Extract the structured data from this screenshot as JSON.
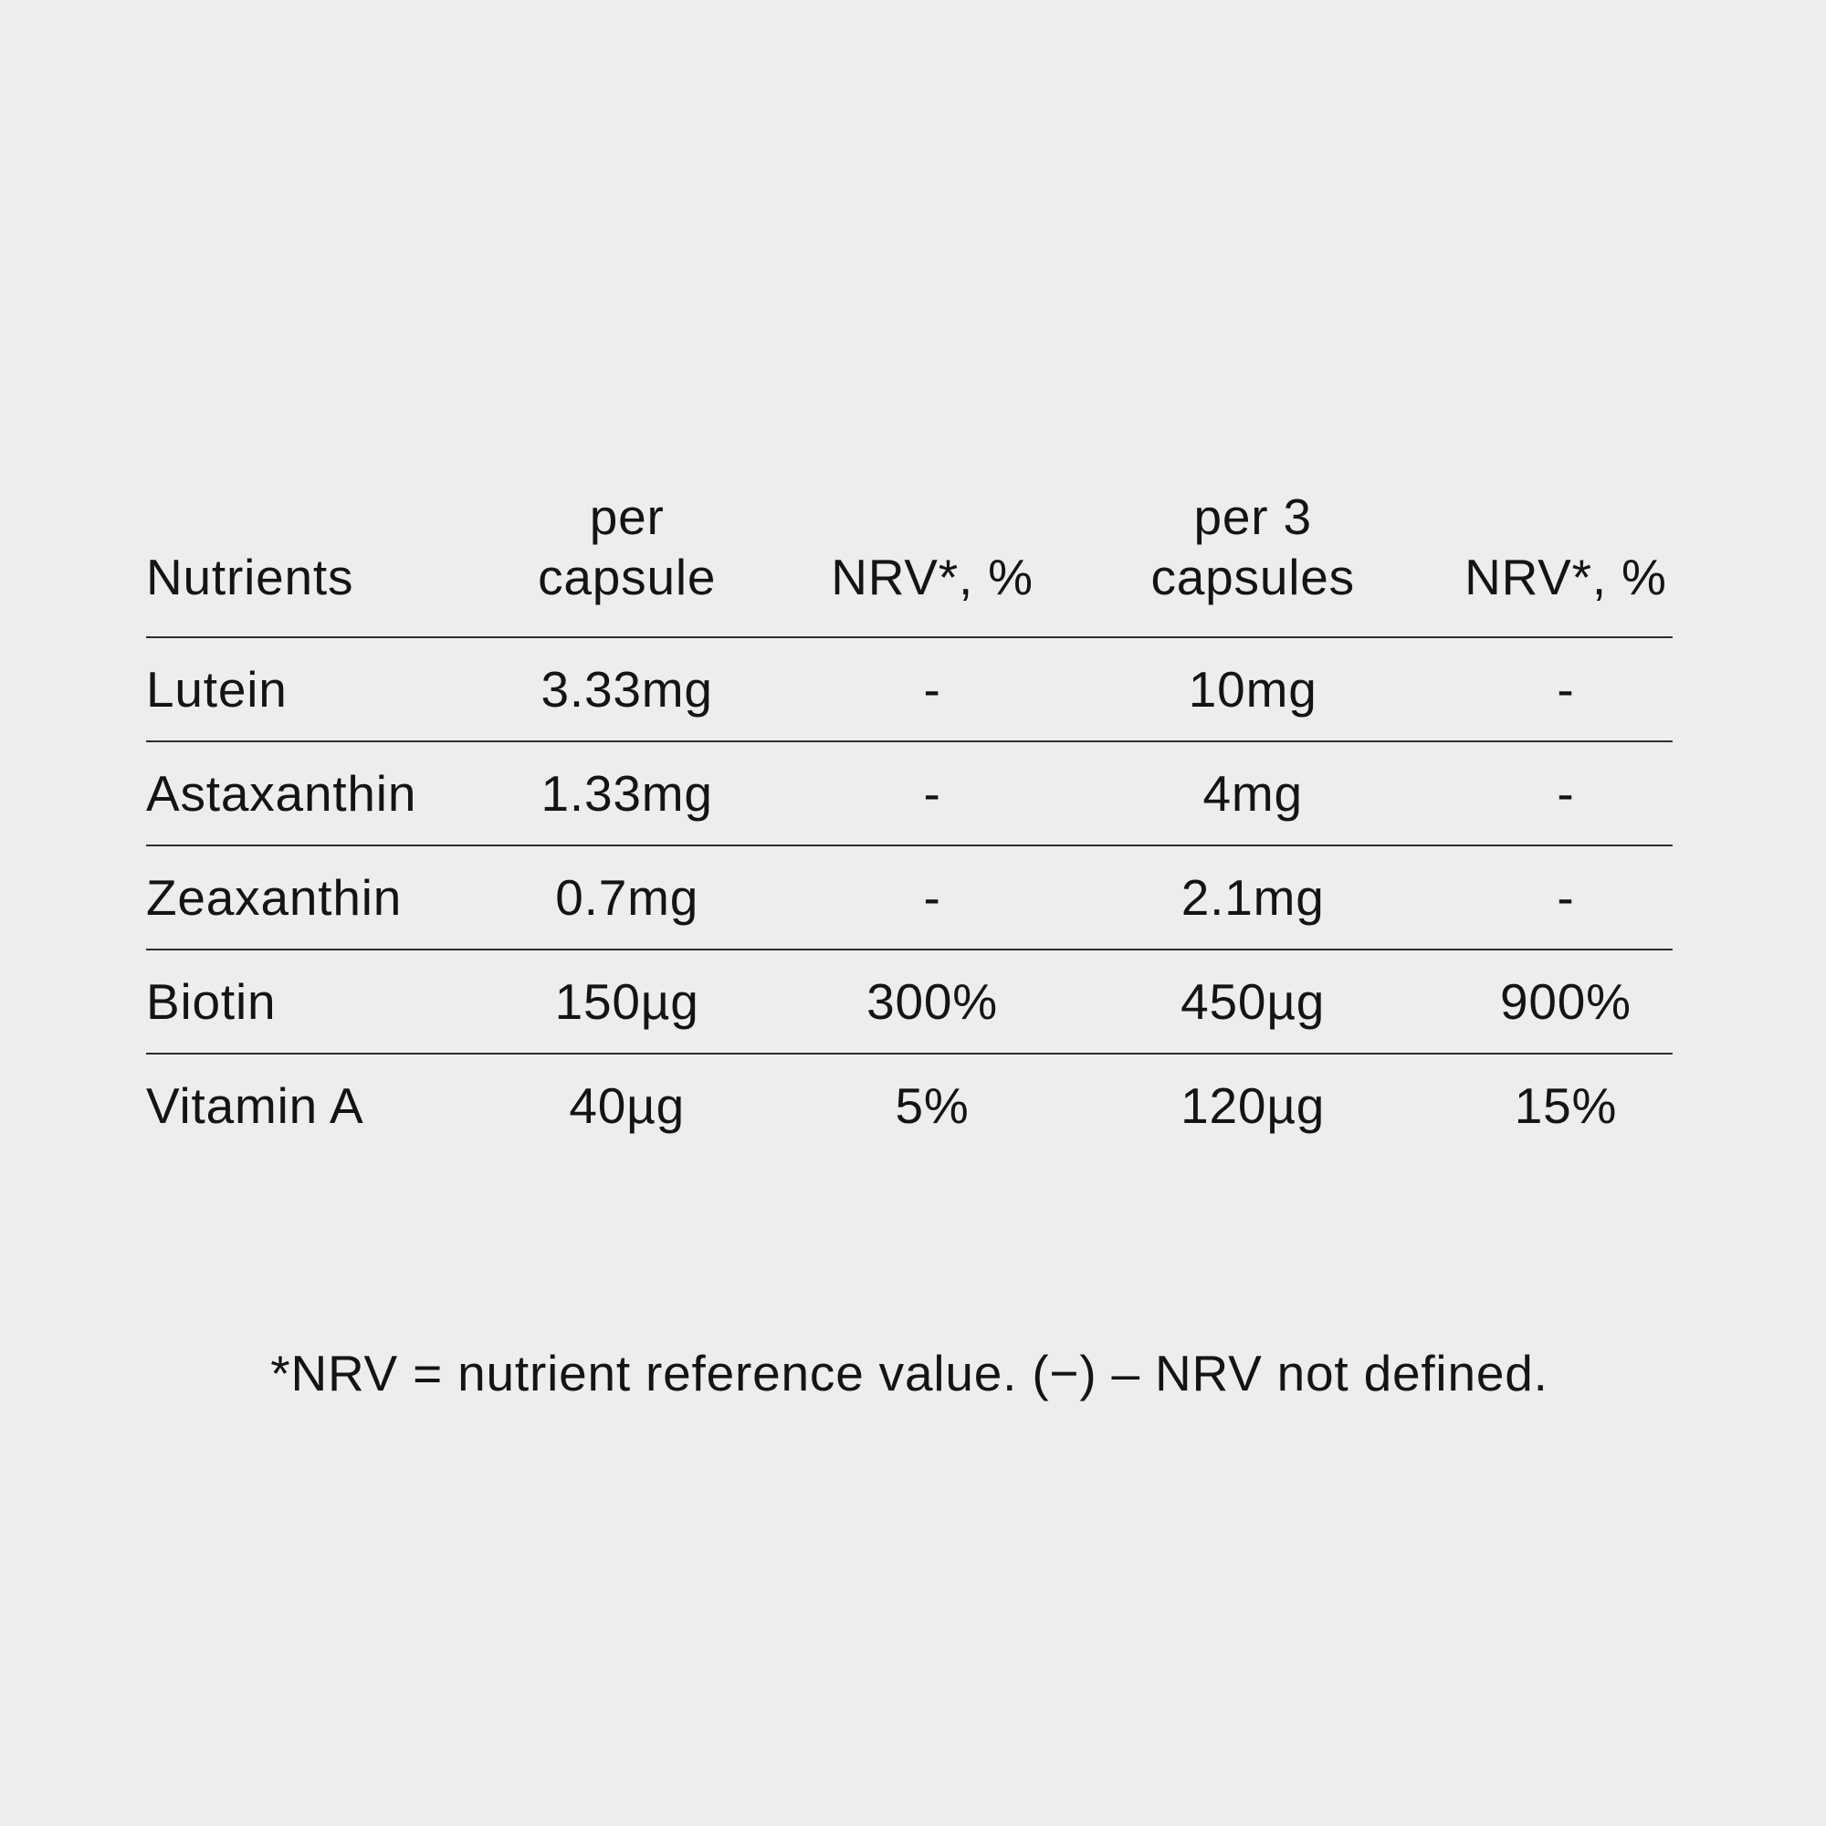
{
  "colors": {
    "background": "#ededed",
    "text": "#141414",
    "rule": "#2e2e2e"
  },
  "table": {
    "headers": [
      [
        "Nutrients"
      ],
      [
        "per",
        "capsule"
      ],
      [
        "NRV*, %"
      ],
      [
        "per 3",
        "capsules"
      ],
      [
        "NRV*, %"
      ]
    ],
    "rows": [
      [
        "Lutein",
        "3.33mg",
        "-",
        "10mg",
        "-"
      ],
      [
        "Astaxanthin",
        "1.33mg",
        "-",
        "4mg",
        "-"
      ],
      [
        "Zeaxanthin",
        "0.7mg",
        "-",
        "2.1mg",
        "-"
      ],
      [
        "Biotin",
        "150µg",
        "300%",
        "450µg",
        "900%"
      ],
      [
        "Vitamin A",
        "40µg",
        "5%",
        "120µg",
        "15%"
      ]
    ]
  },
  "footnote": "*NRV = nutrient reference value. (−) – NRV not defined."
}
